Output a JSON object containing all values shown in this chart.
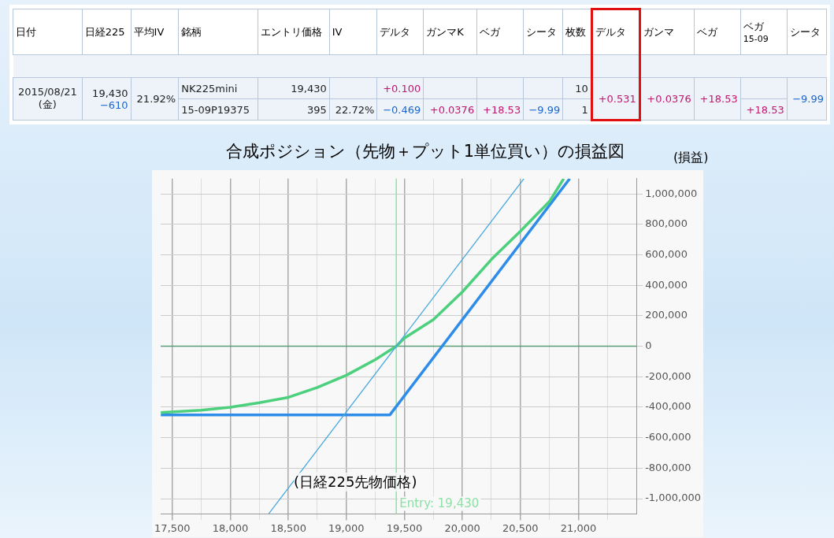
{
  "chart_data": [
    {
      "type": "other",
      "categories": [
        "日付",
        "日経225",
        "平均IV",
        "銘柄",
        "エントリ価格",
        "IV",
        "デルタ",
        "ガンマK",
        "ベガ",
        "シータ",
        "枚数",
        "デルタ",
        "ガンマ",
        "ベガ",
        "ベガ\n15-09",
        "シータ"
      ],
      "cell_labels": [
        [
          "2015/08/21\n(金)",
          "19,430\n−610",
          "21.92%",
          "NK225mini",
          "19,430",
          null,
          "+0.100",
          null,
          null,
          null,
          "10",
          "+0.531",
          "+0.0376",
          "+18.53",
          null,
          "−9.99"
        ],
        [
          null,
          null,
          null,
          "15-09P19375",
          "395",
          "22.72%",
          "−0.469",
          "+0.0376",
          "+18.53",
          "−9.99",
          "1",
          null,
          null,
          null,
          "+18.53",
          null
        ]
      ]
    },
    {
      "type": "line",
      "title": "合成ポジション（先物＋プット1単位買い）の損益図",
      "xlabel": "(日経225先物価格)",
      "ylabel": "(損益)",
      "xlim": [
        17400,
        21500
      ],
      "ylim": [
        -1100000,
        1100000
      ],
      "xticks": [
        {
          "value": 17500,
          "label": "17,500"
        },
        {
          "value": 17750,
          "label": null
        },
        {
          "value": 18000,
          "label": "18,000"
        },
        {
          "value": 18250,
          "label": null
        },
        {
          "value": 18500,
          "label": "18,500"
        },
        {
          "value": 18750,
          "label": null
        },
        {
          "value": 19000,
          "label": "19,000"
        },
        {
          "value": 19250,
          "label": null
        },
        {
          "value": 19500,
          "label": "19,500"
        },
        {
          "value": 19750,
          "label": null
        },
        {
          "value": 20000,
          "label": "20,000"
        },
        {
          "value": 20250,
          "label": null
        },
        {
          "value": 20500,
          "label": "20,500"
        },
        {
          "value": 20750,
          "label": null
        },
        {
          "value": 21000,
          "label": "21,000"
        },
        {
          "value": 21250,
          "label": null
        }
      ],
      "yticks": [
        {
          "value": -1000000,
          "label": "-1,000,000"
        },
        {
          "value": -800000,
          "label": "-800,000"
        },
        {
          "value": -600000,
          "label": "-600,000"
        },
        {
          "value": -400000,
          "label": "-400,000"
        },
        {
          "value": -200000,
          "label": "-200,000"
        },
        0,
        {
          "value": 200000,
          "label": "200,000"
        },
        {
          "value": 400000,
          "label": "400,000"
        },
        {
          "value": 600000,
          "label": "600,000"
        },
        {
          "value": 800000,
          "label": "800,000"
        },
        {
          "value": 1000000,
          "label": "1,000,000"
        }
      ],
      "grid": true,
      "legend": false,
      "marker": "none",
      "line_style": "solid",
      "series": [
        {
          "color": "#45a8e0",
          "x": [
            18330,
            20530
          ],
          "values": [
            -1100000,
            1100000
          ]
        },
        {
          "color": "#4cd07d",
          "x": [
            17400,
            17750,
            18000,
            18250,
            18500,
            18750,
            19000,
            19250,
            19430,
            19500,
            19750,
            20000,
            20250,
            20500,
            20750,
            20873
          ],
          "values": [
            -435000,
            -420000,
            -400000,
            -370000,
            -335000,
            -270000,
            -190000,
            -87000,
            0,
            53000,
            175000,
            357000,
            570000,
            755000,
            950000,
            1100000
          ]
        },
        {
          "color": "#2e8de8",
          "x": [
            17400,
            19375,
            20925
          ],
          "values": [
            -450000,
            -450000,
            1100000
          ]
        }
      ],
      "ref_lines": [
        {
          "axis": "x",
          "value": 19430,
          "label": "Entry: 19,430",
          "color": "#8fe0a8"
        },
        {
          "axis": "y",
          "value": 0,
          "color": "#5a9e78"
        }
      ]
    }
  ]
}
